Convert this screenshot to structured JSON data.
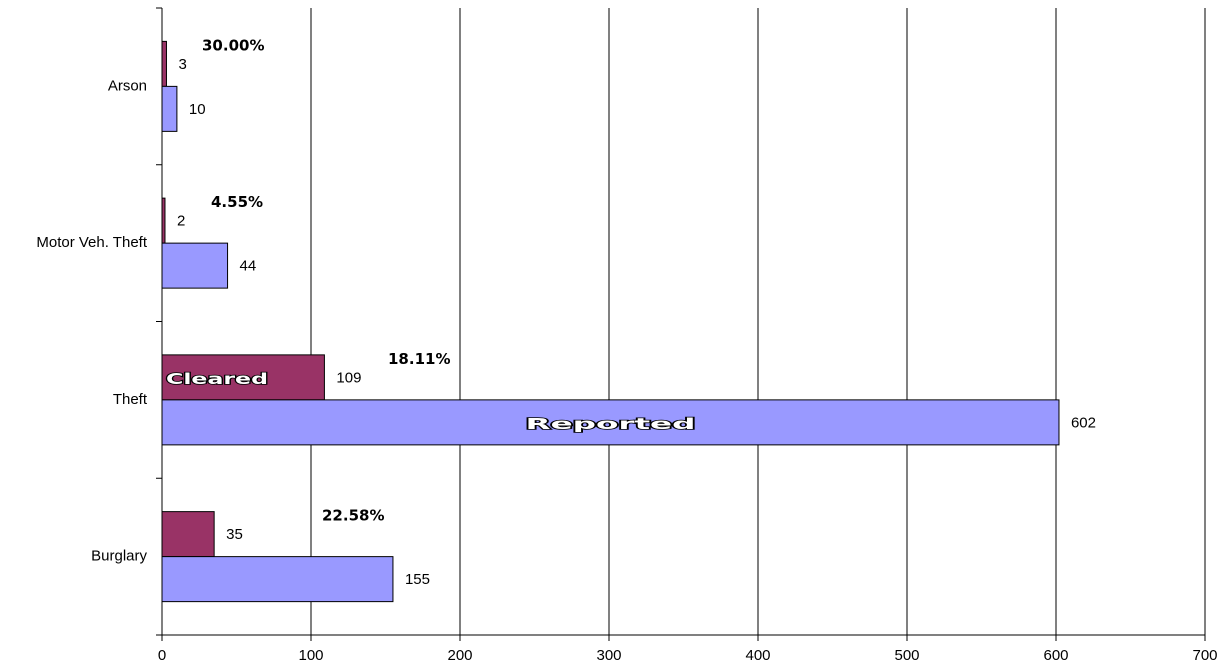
{
  "chart_data": {
    "type": "barh",
    "categories": [
      "Arson",
      "Motor Veh. Theft",
      "Theft",
      "Burglary"
    ],
    "series": [
      {
        "name": "Cleared",
        "color": "#993366",
        "values": [
          3,
          2,
          109,
          35
        ]
      },
      {
        "name": "Reported",
        "color": "#9999ff",
        "values": [
          10,
          44,
          602,
          155
        ]
      }
    ],
    "annotations": [
      "30.00%",
      "4.55%",
      "18.11%",
      "22.58%"
    ],
    "xlim": [
      0,
      700
    ],
    "xticks": [
      0,
      100,
      200,
      300,
      400,
      500,
      600,
      700
    ],
    "grid": true
  }
}
